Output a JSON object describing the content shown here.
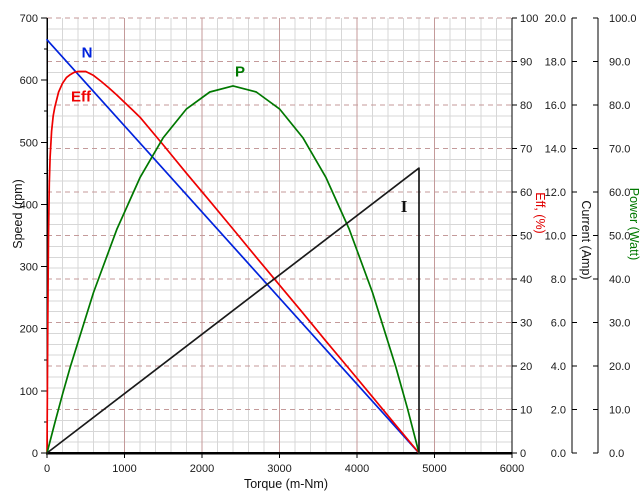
{
  "chart_data": {
    "type": "line",
    "title": "",
    "grid": {
      "minor_color": "#d7d7d7",
      "major_color": "#c49a9a",
      "major_horizontal_style": "dashed",
      "major_vertical_style": "solid"
    },
    "x_axis": {
      "label": "Torque (m-Nm)",
      "min": 0,
      "max": 6000,
      "tick_step": 1000,
      "minor_step": 200,
      "tick_labels": [
        "0",
        "1000",
        "2000",
        "3000",
        "4000",
        "5000",
        "6000"
      ]
    },
    "y_axes": {
      "speed": {
        "label": "Speed (rpm)",
        "min": 0,
        "max": 700,
        "tick_step": 100,
        "side": "left",
        "color": "#1a1a1a",
        "tick_labels": [
          "0",
          "100",
          "200",
          "300",
          "400",
          "500",
          "600",
          "700"
        ]
      },
      "eff": {
        "label": "Eff, (%)",
        "min": 0,
        "max": 100,
        "tick_step": 10,
        "side": "right",
        "color": "#e00000",
        "tick_labels": [
          "0",
          "10",
          "20",
          "30",
          "40",
          "50",
          "60",
          "70",
          "80",
          "90",
          "100"
        ]
      },
      "current": {
        "label": "Current (Amp)",
        "min": 0,
        "max": 20,
        "tick_step": 2,
        "side": "right",
        "color": "#1a1a1a",
        "tick_labels": [
          "0.0",
          "2.0",
          "4.0",
          "6.0",
          "8.0",
          "10.0",
          "12.0",
          "14.0",
          "16.0",
          "18.0",
          "20.0"
        ]
      },
      "power": {
        "label": "Power (Watt)",
        "min": 0,
        "max": 100,
        "tick_step": 10,
        "side": "right",
        "color": "#007800",
        "tick_labels": [
          "0.0",
          "10.0",
          "20.0",
          "30.0",
          "40.0",
          "50.0",
          "60.0",
          "70.0",
          "80.0",
          "90.0",
          "100.0"
        ]
      }
    },
    "curve_labels": {
      "n": "N",
      "eff": "Eff",
      "p": "P",
      "i": "I"
    },
    "stall_torque": 4800,
    "no_load_speed": 665,
    "stall_current": 13.1,
    "max_power": 84.4,
    "max_efficiency": 87.7,
    "series": [
      {
        "name": "N",
        "axis": "speed",
        "color": "#0022dd",
        "points": [
          [
            0,
            665
          ],
          [
            4800,
            0
          ]
        ]
      },
      {
        "name": "Eff",
        "axis": "eff",
        "color": "#ee0000",
        "points": [
          [
            0,
            0
          ],
          [
            5,
            15
          ],
          [
            10,
            30
          ],
          [
            15,
            42
          ],
          [
            20,
            50
          ],
          [
            30,
            62
          ],
          [
            40,
            68
          ],
          [
            60,
            74
          ],
          [
            80,
            77.5
          ],
          [
            100,
            79.5
          ],
          [
            150,
            83
          ],
          [
            200,
            85
          ],
          [
            250,
            86.3
          ],
          [
            300,
            87
          ],
          [
            350,
            87.5
          ],
          [
            400,
            87.7
          ],
          [
            500,
            87.7
          ],
          [
            600,
            86.8
          ],
          [
            700,
            85.4
          ],
          [
            800,
            83.9
          ],
          [
            900,
            82.3
          ],
          [
            1000,
            80.6
          ],
          [
            1100,
            78.9
          ],
          [
            1200,
            77.2
          ],
          [
            1500,
            70.8
          ],
          [
            1800,
            64.3
          ],
          [
            2100,
            57.9
          ],
          [
            2400,
            51.5
          ],
          [
            2700,
            45
          ],
          [
            3000,
            38.6
          ],
          [
            3300,
            32.2
          ],
          [
            3600,
            25.7
          ],
          [
            3900,
            19.3
          ],
          [
            4200,
            12.9
          ],
          [
            4500,
            6.4
          ],
          [
            4800,
            0
          ]
        ]
      },
      {
        "name": "P",
        "axis": "power",
        "color": "#007800",
        "points": [
          [
            0,
            0
          ],
          [
            100,
            6.9
          ],
          [
            200,
            13.5
          ],
          [
            300,
            19.8
          ],
          [
            600,
            36.9
          ],
          [
            900,
            51.4
          ],
          [
            1200,
            63.3
          ],
          [
            1500,
            72.5
          ],
          [
            1800,
            79.1
          ],
          [
            2100,
            83
          ],
          [
            2400,
            84.4
          ],
          [
            2700,
            83
          ],
          [
            3000,
            79.1
          ],
          [
            3300,
            72.5
          ],
          [
            3600,
            63.3
          ],
          [
            3900,
            51.4
          ],
          [
            4200,
            36.9
          ],
          [
            4500,
            19.8
          ],
          [
            4650,
            10.3
          ],
          [
            4800,
            0
          ]
        ]
      },
      {
        "name": "I",
        "axis": "current",
        "color": "#1a1a1a",
        "points": [
          [
            0,
            0
          ],
          [
            4800,
            13.1
          ],
          [
            4800,
            0
          ]
        ]
      }
    ]
  }
}
